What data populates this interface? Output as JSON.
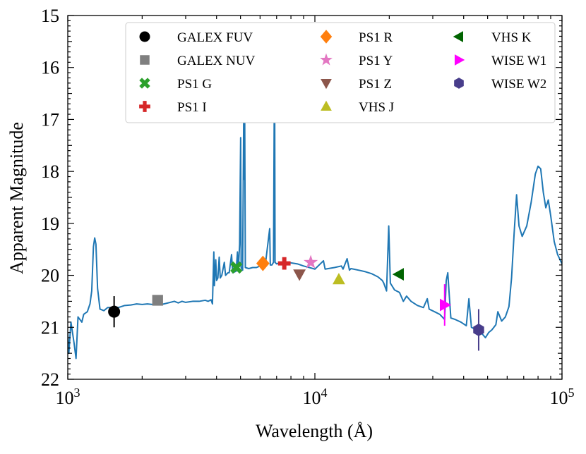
{
  "chart_data": {
    "type": "scatter",
    "title": "",
    "xlabel": "Wavelength (Å)",
    "ylabel": "Apparent Magnitude",
    "xscale": "log",
    "xlim": [
      1000,
      100000
    ],
    "ylim": [
      22,
      15
    ],
    "y_inverted": true,
    "grid": false,
    "legend_position": "top-right",
    "legend_columns": 3,
    "x_tick_labels": [
      {
        "x": 1000,
        "base": "10",
        "exp": "3"
      },
      {
        "x": 10000,
        "base": "10",
        "exp": "4"
      },
      {
        "x": 100000,
        "base": "10",
        "exp": "5"
      }
    ],
    "y_ticks": [
      "15",
      "16",
      "17",
      "18",
      "19",
      "20",
      "21",
      "22"
    ],
    "spectrum": {
      "color": "#1f77b4",
      "points": [
        [
          1000,
          21.1
        ],
        [
          1010,
          21.5
        ],
        [
          1030,
          20.9
        ],
        [
          1060,
          21.3
        ],
        [
          1080,
          21.6
        ],
        [
          1100,
          20.8
        ],
        [
          1140,
          20.9
        ],
        [
          1160,
          20.75
        ],
        [
          1200,
          20.7
        ],
        [
          1230,
          20.55
        ],
        [
          1250,
          20.3
        ],
        [
          1270,
          19.45
        ],
        [
          1285,
          19.28
        ],
        [
          1300,
          19.4
        ],
        [
          1320,
          20.25
        ],
        [
          1350,
          20.65
        ],
        [
          1400,
          20.68
        ],
        [
          1450,
          20.62
        ],
        [
          1500,
          20.62
        ],
        [
          1550,
          20.6
        ],
        [
          1600,
          20.62
        ],
        [
          1700,
          20.58
        ],
        [
          1800,
          20.57
        ],
        [
          1900,
          20.55
        ],
        [
          2000,
          20.56
        ],
        [
          2100,
          20.55
        ],
        [
          2200,
          20.56
        ],
        [
          2300,
          20.55
        ],
        [
          2400,
          20.56
        ],
        [
          2500,
          20.54
        ],
        [
          2700,
          20.5
        ],
        [
          2800,
          20.53
        ],
        [
          2900,
          20.5
        ],
        [
          3000,
          20.52
        ],
        [
          3200,
          20.5
        ],
        [
          3400,
          20.5
        ],
        [
          3600,
          20.48
        ],
        [
          3700,
          20.5
        ],
        [
          3800,
          20.47
        ],
        [
          3850,
          20.55
        ],
        [
          3900,
          19.55
        ],
        [
          3920,
          20.2
        ],
        [
          3970,
          19.7
        ],
        [
          4000,
          20.1
        ],
        [
          4050,
          20.05
        ],
        [
          4100,
          19.65
        ],
        [
          4140,
          20.05
        ],
        [
          4200,
          20.0
        ],
        [
          4300,
          19.75
        ],
        [
          4350,
          20.0
        ],
        [
          4450,
          19.95
        ],
        [
          4500,
          19.95
        ],
        [
          4600,
          19.6
        ],
        [
          4650,
          19.95
        ],
        [
          4800,
          19.92
        ],
        [
          4861,
          19.55
        ],
        [
          4900,
          19.9
        ],
        [
          4959,
          19.4
        ],
        [
          5007,
          17.35
        ],
        [
          5030,
          19.85
        ],
        [
          5100,
          19.9
        ],
        [
          5150,
          17.05
        ],
        [
          5175,
          18.15
        ],
        [
          5200,
          16.95
        ],
        [
          5230,
          19.85
        ],
        [
          5400,
          19.87
        ],
        [
          5600,
          19.85
        ],
        [
          5800,
          19.85
        ],
        [
          6000,
          19.82
        ],
        [
          6300,
          19.8
        ],
        [
          6563,
          19.1
        ],
        [
          6600,
          19.8
        ],
        [
          6700,
          19.8
        ],
        [
          6800,
          19.75
        ],
        [
          6867,
          15.5
        ],
        [
          6900,
          19.75
        ],
        [
          7000,
          19.78
        ],
        [
          7300,
          19.75
        ],
        [
          7600,
          19.75
        ],
        [
          8000,
          19.76
        ],
        [
          8500,
          19.78
        ],
        [
          9000,
          19.82
        ],
        [
          9500,
          19.85
        ],
        [
          10000,
          19.88
        ],
        [
          10830,
          19.72
        ],
        [
          11000,
          19.88
        ],
        [
          12000,
          19.85
        ],
        [
          12800,
          19.82
        ],
        [
          13000,
          19.88
        ],
        [
          13500,
          19.68
        ],
        [
          13800,
          19.9
        ],
        [
          14000,
          19.87
        ],
        [
          15000,
          19.9
        ],
        [
          16000,
          19.93
        ],
        [
          17000,
          19.97
        ],
        [
          18000,
          20.03
        ],
        [
          18750,
          20.1
        ],
        [
          19000,
          20.15
        ],
        [
          19500,
          20.3
        ],
        [
          19900,
          19.05
        ],
        [
          20200,
          20.15
        ],
        [
          21000,
          20.28
        ],
        [
          22000,
          20.33
        ],
        [
          22800,
          20.5
        ],
        [
          23500,
          20.4
        ],
        [
          24500,
          20.5
        ],
        [
          26000,
          20.58
        ],
        [
          27500,
          20.62
        ],
        [
          28500,
          20.45
        ],
        [
          29000,
          20.65
        ],
        [
          30500,
          20.7
        ],
        [
          32000,
          20.75
        ],
        [
          33500,
          20.85
        ],
        [
          34000,
          20.1
        ],
        [
          34500,
          19.95
        ],
        [
          35000,
          20.4
        ],
        [
          35500,
          20.82
        ],
        [
          37000,
          20.85
        ],
        [
          39000,
          20.9
        ],
        [
          41000,
          20.97
        ],
        [
          42000,
          20.45
        ],
        [
          43000,
          21.0
        ],
        [
          45000,
          21.05
        ],
        [
          47000,
          21.1
        ],
        [
          49000,
          21.2
        ],
        [
          50500,
          21.1
        ],
        [
          52000,
          21.05
        ],
        [
          54000,
          20.95
        ],
        [
          55000,
          20.7
        ],
        [
          57000,
          20.88
        ],
        [
          59000,
          20.8
        ],
        [
          61000,
          20.6
        ],
        [
          62500,
          20.05
        ],
        [
          64000,
          19.2
        ],
        [
          65500,
          18.45
        ],
        [
          67000,
          19.05
        ],
        [
          69000,
          19.25
        ],
        [
          72000,
          19.05
        ],
        [
          75000,
          18.6
        ],
        [
          78000,
          18.05
        ],
        [
          80000,
          17.9
        ],
        [
          82000,
          17.95
        ],
        [
          84000,
          18.4
        ],
        [
          86000,
          18.7
        ],
        [
          88000,
          18.55
        ],
        [
          90000,
          18.85
        ],
        [
          93000,
          19.35
        ],
        [
          96000,
          19.6
        ],
        [
          100000,
          19.78
        ]
      ]
    },
    "series": [
      {
        "name": "GALEX FUV",
        "marker": "circle",
        "color": "#000000",
        "x": 1540,
        "y": 20.7,
        "yerr": 0.3
      },
      {
        "name": "GALEX NUV",
        "marker": "square",
        "color": "#7f7f7f",
        "x": 2310,
        "y": 20.48,
        "yerr": 0.05
      },
      {
        "name": "PS1 G",
        "marker": "x",
        "color": "#2ca02c",
        "x": 4810,
        "y": 19.85
      },
      {
        "name": "PS1 I",
        "marker": "plus",
        "color": "#d62728",
        "x": 7520,
        "y": 19.77
      },
      {
        "name": "PS1 R",
        "marker": "diamond",
        "color": "#ff7f0e",
        "x": 6160,
        "y": 19.77
      },
      {
        "name": "PS1 Y",
        "marker": "star",
        "color": "#e377c2",
        "x": 9620,
        "y": 19.75
      },
      {
        "name": "PS1 Z",
        "marker": "triangle-down",
        "color": "#8c564b",
        "x": 8660,
        "y": 19.98
      },
      {
        "name": "VHS J",
        "marker": "triangle-up",
        "color": "#bcbd22",
        "x": 12500,
        "y": 20.08
      },
      {
        "name": "VHS K",
        "marker": "triangle-left",
        "color": "#006400",
        "x": 21900,
        "y": 19.98
      },
      {
        "name": "WISE W1",
        "marker": "triangle-right",
        "color": "#ff00ff",
        "x": 33500,
        "y": 20.57,
        "yerr": 0.4
      },
      {
        "name": "WISE W2",
        "marker": "hexagon",
        "color": "#483d8b",
        "x": 46000,
        "y": 21.05,
        "yerr": 0.4
      }
    ]
  }
}
